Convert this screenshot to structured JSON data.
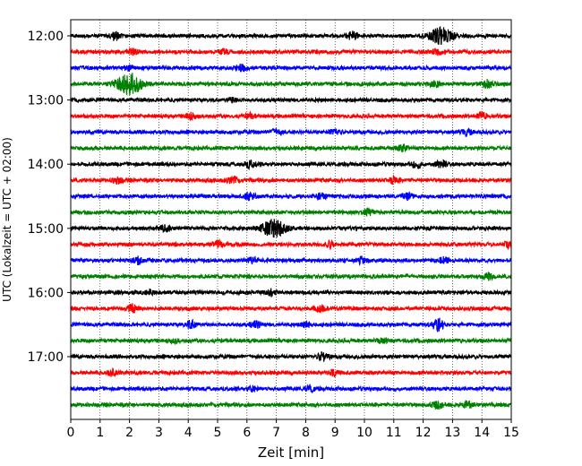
{
  "chart_data": {
    "type": "line",
    "title": "",
    "xlabel": "Zeit  [min]",
    "ylabel": "UTC (Lokalzeit = UTC + 02:00)",
    "xlim": [
      0,
      15
    ],
    "x_ticks": [
      0,
      1,
      2,
      3,
      4,
      5,
      6,
      7,
      8,
      9,
      10,
      11,
      12,
      13,
      14,
      15
    ],
    "x_tick_labels": [
      "0",
      "1",
      "2",
      "3",
      "4",
      "5",
      "6",
      "7",
      "8",
      "9",
      "10",
      "11",
      "12",
      "13",
      "14",
      "15"
    ],
    "grid": "vertical dotted at each minute",
    "y_tick_labels": [
      "12:00",
      "13:00",
      "14:00",
      "15:00",
      "16:00",
      "17:00"
    ],
    "y_tick_rows": [
      0,
      4,
      8,
      12,
      16,
      20
    ],
    "row_minutes": 15,
    "colors": [
      "#000000",
      "#ff0000",
      "#0000ff",
      "#008000"
    ],
    "traces": [
      {
        "start": "12:00",
        "color": "#000000",
        "events": [
          {
            "t": 1.5,
            "amp": 0.45
          },
          {
            "t": 9.6,
            "amp": 0.45
          },
          {
            "t": 12.6,
            "amp": 0.85
          }
        ]
      },
      {
        "start": "12:15",
        "color": "#ff0000",
        "events": [
          {
            "t": 2.1,
            "amp": 0.3
          },
          {
            "t": 5.2,
            "amp": 0.25
          },
          {
            "t": 12.5,
            "amp": 0.25
          }
        ]
      },
      {
        "start": "12:30",
        "color": "#0000ff",
        "events": [
          {
            "t": 2.0,
            "amp": 0.25
          },
          {
            "t": 5.8,
            "amp": 0.35
          }
        ]
      },
      {
        "start": "12:45",
        "color": "#008000",
        "events": [
          {
            "t": 2.0,
            "amp": 1.2
          },
          {
            "t": 12.4,
            "amp": 0.3
          },
          {
            "t": 14.2,
            "amp": 0.4
          }
        ]
      },
      {
        "start": "13:00",
        "color": "#000000",
        "events": [
          {
            "t": 5.5,
            "amp": 0.2
          }
        ]
      },
      {
        "start": "13:15",
        "color": "#ff0000",
        "events": [
          {
            "t": 4.1,
            "amp": 0.3
          },
          {
            "t": 6.1,
            "amp": 0.25
          },
          {
            "t": 14.0,
            "amp": 0.3
          }
        ]
      },
      {
        "start": "13:30",
        "color": "#0000ff",
        "events": [
          {
            "t": 7.0,
            "amp": 0.35
          },
          {
            "t": 9.0,
            "amp": 0.3
          },
          {
            "t": 13.5,
            "amp": 0.3
          }
        ]
      },
      {
        "start": "13:45",
        "color": "#008000",
        "events": [
          {
            "t": 11.3,
            "amp": 0.35
          }
        ]
      },
      {
        "start": "14:00",
        "color": "#000000",
        "events": [
          {
            "t": 6.1,
            "amp": 0.35
          },
          {
            "t": 11.8,
            "amp": 0.4
          },
          {
            "t": 12.6,
            "amp": 0.4
          }
        ]
      },
      {
        "start": "14:15",
        "color": "#ff0000",
        "events": [
          {
            "t": 1.6,
            "amp": 0.3
          },
          {
            "t": 5.5,
            "amp": 0.4
          },
          {
            "t": 11.0,
            "amp": 0.4
          }
        ]
      },
      {
        "start": "14:30",
        "color": "#0000ff",
        "events": [
          {
            "t": 6.1,
            "amp": 0.45
          },
          {
            "t": 8.5,
            "amp": 0.35
          },
          {
            "t": 11.5,
            "amp": 0.35
          }
        ]
      },
      {
        "start": "14:45",
        "color": "#008000",
        "events": [
          {
            "t": 10.1,
            "amp": 0.3
          }
        ]
      },
      {
        "start": "15:00",
        "color": "#000000",
        "events": [
          {
            "t": 3.2,
            "amp": 0.3
          },
          {
            "t": 6.9,
            "amp": 0.9
          }
        ]
      },
      {
        "start": "15:15",
        "color": "#ff0000",
        "events": [
          {
            "t": 5.0,
            "amp": 0.35
          },
          {
            "t": 8.8,
            "amp": 0.35
          },
          {
            "t": 14.9,
            "amp": 0.3
          }
        ]
      },
      {
        "start": "15:30",
        "color": "#0000ff",
        "events": [
          {
            "t": 2.3,
            "amp": 0.35
          },
          {
            "t": 6.2,
            "amp": 0.3
          },
          {
            "t": 9.9,
            "amp": 0.3
          },
          {
            "t": 12.7,
            "amp": 0.35
          }
        ]
      },
      {
        "start": "15:45",
        "color": "#008000",
        "events": [
          {
            "t": 14.2,
            "amp": 0.35
          }
        ]
      },
      {
        "start": "16:00",
        "color": "#000000",
        "events": [
          {
            "t": 2.7,
            "amp": 0.3
          },
          {
            "t": 6.8,
            "amp": 0.35
          }
        ]
      },
      {
        "start": "16:15",
        "color": "#ff0000",
        "events": [
          {
            "t": 2.1,
            "amp": 0.45
          },
          {
            "t": 8.5,
            "amp": 0.3
          }
        ]
      },
      {
        "start": "16:30",
        "color": "#0000ff",
        "events": [
          {
            "t": 4.1,
            "amp": 0.4
          },
          {
            "t": 6.3,
            "amp": 0.35
          },
          {
            "t": 8.0,
            "amp": 0.3
          },
          {
            "t": 12.5,
            "amp": 0.75
          }
        ]
      },
      {
        "start": "16:45",
        "color": "#008000",
        "events": [
          {
            "t": 3.5,
            "amp": 0.2
          },
          {
            "t": 10.6,
            "amp": 0.25
          }
        ]
      },
      {
        "start": "17:00",
        "color": "#000000",
        "events": [
          {
            "t": 8.6,
            "amp": 0.5
          }
        ]
      },
      {
        "start": "17:15",
        "color": "#ff0000",
        "events": [
          {
            "t": 1.4,
            "amp": 0.3
          },
          {
            "t": 9.0,
            "amp": 0.35
          }
        ]
      },
      {
        "start": "17:30",
        "color": "#0000ff",
        "events": [
          {
            "t": 6.2,
            "amp": 0.25
          },
          {
            "t": 8.2,
            "amp": 0.35
          }
        ]
      },
      {
        "start": "17:45",
        "color": "#008000",
        "events": [
          {
            "t": 12.5,
            "amp": 0.4
          },
          {
            "t": 13.5,
            "amp": 0.35
          }
        ]
      }
    ]
  }
}
